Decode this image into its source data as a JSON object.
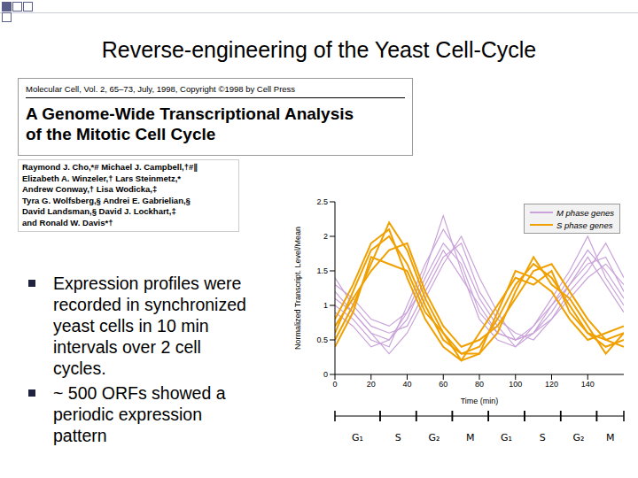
{
  "title": "Reverse-engineering of the Yeast Cell-Cycle",
  "paper": {
    "citation": "Molecular Cell, Vol. 2, 65–73, July, 1998, Copyright ©1998 by Cell Press",
    "heading": [
      "A Genome-Wide Transcriptional Analysis",
      "of the Mitotic Cell Cycle"
    ],
    "authors": [
      "Raymond J. Cho,*# Michael J. Campbell,†#∥",
      "Elizabeth A. Winzeler,† Lars Steinmetz,*",
      "Andrew Conway,† Lisa Wodicka,‡",
      "Tyra G. Wolfsberg,§ Andrei E. Gabrielian,§",
      "David Landsman,§ David J. Lockhart,‡",
      "and Ronald W. Davis*†"
    ]
  },
  "bullets": [
    [
      "Expression profiles were",
      "recorded in synchronized",
      "yeast cells in 10 min",
      "intervals over 2 cell",
      "cycles."
    ],
    [
      "~ 500 ORFs showed a",
      "periodic expression",
      "pattern"
    ]
  ],
  "chart_data": {
    "type": "line",
    "x": [
      0,
      10,
      20,
      30,
      40,
      50,
      60,
      70,
      80,
      90,
      100,
      110,
      120,
      130,
      140,
      150,
      160
    ],
    "xlim": [
      0,
      160
    ],
    "xticks": [
      0,
      20,
      40,
      60,
      80,
      100,
      120,
      140
    ],
    "ylim": [
      0,
      2.5
    ],
    "yticks": [
      0,
      0.5,
      1,
      1.5,
      2,
      2.5
    ],
    "xlabel": "Time (min)",
    "ylabel": "Normalized Transcript. Level/Mean",
    "legend": "upper right",
    "grid": false,
    "series": [
      {
        "name": "M phase genes",
        "color": "#c9a3d9",
        "values": [
          [
            1.2,
            0.9,
            0.6,
            0.5,
            0.8,
            1.4,
            1.9,
            1.6,
            0.9,
            0.6,
            0.5,
            0.7,
            1.0,
            1.4,
            1.8,
            1.5,
            1.1
          ],
          [
            1.0,
            0.8,
            0.5,
            0.4,
            1.0,
            1.6,
            2.1,
            1.7,
            1.1,
            0.7,
            0.4,
            0.6,
            0.9,
            1.3,
            1.6,
            1.7,
            1.2
          ],
          [
            1.4,
            1.0,
            0.7,
            0.6,
            0.7,
            1.2,
            1.7,
            1.9,
            1.2,
            0.8,
            0.6,
            0.5,
            0.8,
            1.2,
            1.5,
            1.9,
            1.4
          ],
          [
            0.9,
            0.7,
            0.4,
            0.5,
            0.9,
            1.5,
            2.3,
            1.5,
            0.8,
            0.5,
            0.4,
            0.7,
            1.1,
            1.5,
            2.0,
            1.4,
            1.0
          ],
          [
            1.1,
            0.9,
            0.6,
            0.3,
            0.6,
            1.1,
            1.6,
            2.0,
            1.4,
            0.9,
            0.5,
            0.6,
            0.8,
            1.1,
            1.4,
            1.6,
            1.3
          ],
          [
            1.3,
            1.1,
            0.8,
            0.7,
            0.9,
            1.3,
            1.8,
            1.4,
            1.0,
            0.6,
            0.5,
            0.6,
            1.0,
            1.3,
            1.7,
            1.3,
            0.9
          ]
        ]
      },
      {
        "name": "S phase genes",
        "color": "#f0a000",
        "values": [
          [
            0.6,
            1.2,
            1.8,
            2.0,
            1.6,
            1.0,
            0.5,
            0.3,
            0.4,
            0.8,
            1.3,
            1.6,
            1.4,
            1.0,
            0.6,
            0.4,
            0.5
          ],
          [
            0.5,
            1.0,
            1.6,
            2.2,
            1.8,
            1.1,
            0.6,
            0.2,
            0.3,
            0.9,
            1.5,
            1.4,
            1.2,
            0.8,
            0.5,
            0.6,
            0.7
          ],
          [
            0.7,
            1.1,
            1.5,
            1.8,
            1.9,
            1.2,
            0.7,
            0.4,
            0.5,
            0.7,
            1.1,
            1.5,
            1.6,
            1.2,
            0.8,
            0.5,
            0.4
          ],
          [
            0.4,
            0.9,
            1.7,
            1.6,
            1.5,
            0.9,
            0.6,
            0.3,
            0.3,
            0.6,
            1.2,
            1.7,
            1.3,
            1.1,
            0.7,
            0.3,
            0.6
          ],
          [
            0.8,
            1.3,
            1.9,
            2.1,
            1.4,
            0.8,
            0.4,
            0.2,
            0.6,
            1.0,
            1.4,
            1.3,
            1.5,
            0.9,
            0.6,
            0.5,
            0.6
          ]
        ]
      }
    ],
    "phases": [
      {
        "label": "G₁",
        "start": 0,
        "end": 25
      },
      {
        "label": "S",
        "start": 25,
        "end": 45
      },
      {
        "label": "G₂",
        "start": 45,
        "end": 65
      },
      {
        "label": "M",
        "start": 65,
        "end": 85
      },
      {
        "label": "G₁",
        "start": 85,
        "end": 105
      },
      {
        "label": "S",
        "start": 105,
        "end": 125
      },
      {
        "label": "G₂",
        "start": 125,
        "end": 145
      },
      {
        "label": "M",
        "start": 145,
        "end": 160
      }
    ]
  }
}
